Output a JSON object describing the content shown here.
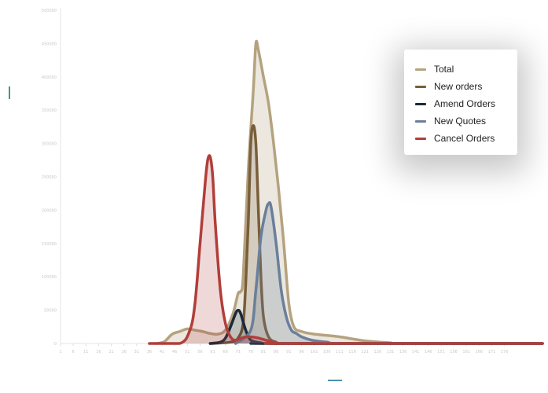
{
  "chart_data": {
    "type": "area",
    "title": "",
    "xlabel": "",
    "ylabel": "",
    "ylim": [
      0,
      500000
    ],
    "xlim": [
      1,
      191
    ],
    "yticks": [
      0,
      50000,
      100000,
      150000,
      200000,
      250000,
      300000,
      350000,
      400000,
      450000,
      500000
    ],
    "ytick_labels": [
      "0",
      "50000",
      "100000",
      "150000",
      "200000",
      "250000",
      "300000",
      "350000",
      "400000",
      "450000",
      "500000"
    ],
    "xticks": [
      1,
      6,
      11,
      16,
      21,
      26,
      31,
      36,
      41,
      46,
      51,
      56,
      61,
      66,
      71,
      76,
      81,
      86,
      91,
      96,
      101,
      106,
      111,
      116,
      121,
      126,
      131,
      136,
      141,
      146,
      151,
      156,
      161,
      166,
      171,
      176
    ],
    "grid": false,
    "legend_position": "top-right",
    "series": [
      {
        "name": "Total",
        "color": "#b5a27f",
        "fill": "rgba(181,162,127,0.25)",
        "points": [
          [
            39,
            0
          ],
          [
            42,
            3000
          ],
          [
            45,
            14000
          ],
          [
            48,
            18000
          ],
          [
            51,
            22000
          ],
          [
            54,
            20000
          ],
          [
            57,
            18000
          ],
          [
            60,
            15000
          ],
          [
            63,
            14000
          ],
          [
            66,
            20000
          ],
          [
            69,
            45000
          ],
          [
            71,
            75000
          ],
          [
            72,
            78000
          ],
          [
            73,
            100000
          ],
          [
            75,
            260000
          ],
          [
            77,
            380000
          ],
          [
            78,
            450000
          ],
          [
            79,
            440000
          ],
          [
            81,
            400000
          ],
          [
            83,
            360000
          ],
          [
            85,
            300000
          ],
          [
            87,
            230000
          ],
          [
            89,
            150000
          ],
          [
            91,
            60000
          ],
          [
            93,
            25000
          ],
          [
            96,
            18000
          ],
          [
            101,
            14000
          ],
          [
            111,
            10000
          ],
          [
            121,
            4000
          ],
          [
            131,
            1000
          ],
          [
            136,
            0
          ],
          [
            191,
            0
          ]
        ]
      },
      {
        "name": "New orders",
        "color": "#7a5e3a",
        "fill": "rgba(122,94,58,0.20)",
        "points": [
          [
            60,
            0
          ],
          [
            68,
            2000
          ],
          [
            71,
            8000
          ],
          [
            73,
            30000
          ],
          [
            74,
            90000
          ],
          [
            75,
            180000
          ],
          [
            76,
            300000
          ],
          [
            77,
            327000
          ],
          [
            78,
            300000
          ],
          [
            79,
            200000
          ],
          [
            80,
            100000
          ],
          [
            81,
            40000
          ],
          [
            83,
            10000
          ],
          [
            86,
            2000
          ],
          [
            91,
            0
          ],
          [
            191,
            0
          ]
        ]
      },
      {
        "name": "Amend Orders",
        "color": "#1b2a3a",
        "fill": "rgba(27,42,58,0.20)",
        "points": [
          [
            60,
            0
          ],
          [
            64,
            2000
          ],
          [
            66,
            8000
          ],
          [
            68,
            25000
          ],
          [
            70,
            45000
          ],
          [
            71,
            50000
          ],
          [
            72,
            45000
          ],
          [
            74,
            20000
          ],
          [
            76,
            5000
          ],
          [
            80,
            1000
          ],
          [
            85,
            0
          ],
          [
            191,
            0
          ]
        ]
      },
      {
        "name": "New Quotes",
        "color": "#6a7f9a",
        "fill": "rgba(106,127,154,0.25)",
        "points": [
          [
            70,
            0
          ],
          [
            76,
            20000
          ],
          [
            78,
            80000
          ],
          [
            80,
            160000
          ],
          [
            82,
            200000
          ],
          [
            83,
            210000
          ],
          [
            84,
            205000
          ],
          [
            86,
            150000
          ],
          [
            88,
            80000
          ],
          [
            90,
            40000
          ],
          [
            92,
            20000
          ],
          [
            94,
            15000
          ],
          [
            96,
            10000
          ],
          [
            100,
            5000
          ],
          [
            106,
            2000
          ],
          [
            116,
            0
          ],
          [
            191,
            0
          ]
        ]
      },
      {
        "name": "Cancel Orders",
        "color": "#b13e3a",
        "fill": "rgba(177,62,58,0.20)",
        "points": [
          [
            36,
            0
          ],
          [
            48,
            0
          ],
          [
            52,
            20000
          ],
          [
            54,
            60000
          ],
          [
            56,
            150000
          ],
          [
            58,
            240000
          ],
          [
            59,
            275000
          ],
          [
            60,
            280000
          ],
          [
            61,
            250000
          ],
          [
            62,
            180000
          ],
          [
            64,
            80000
          ],
          [
            66,
            30000
          ],
          [
            68,
            10000
          ],
          [
            70,
            5000
          ],
          [
            74,
            10000
          ],
          [
            78,
            9000
          ],
          [
            82,
            5000
          ],
          [
            86,
            1000
          ],
          [
            90,
            0
          ],
          [
            191,
            0
          ]
        ]
      }
    ]
  }
}
